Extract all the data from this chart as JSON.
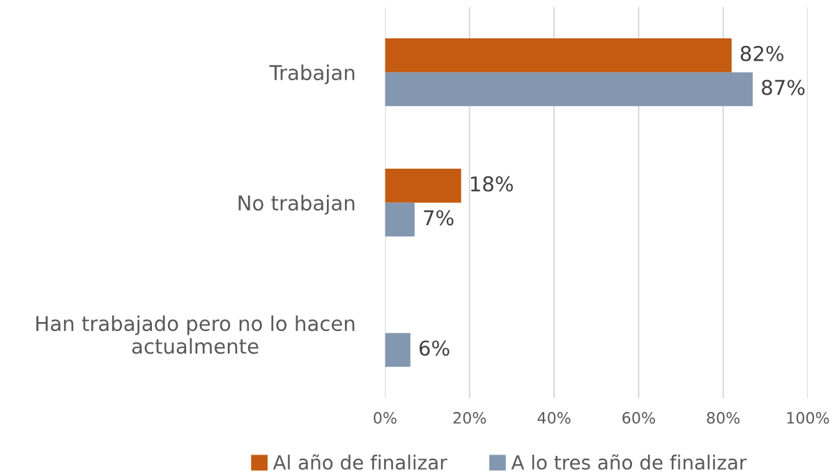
{
  "chart_data": {
    "type": "bar",
    "orientation": "horizontal",
    "categories": [
      "Trabajan",
      "No trabajan",
      "Han trabajado pero no lo hacen\nactualmente"
    ],
    "series": [
      {
        "name": "Al año de finalizar",
        "color": "#c55a11",
        "values": [
          82,
          18,
          null
        ],
        "value_labels": [
          "82%",
          "18%",
          null
        ]
      },
      {
        "name": "A lo tres año de finalizar",
        "color": "#8497b0",
        "values": [
          87,
          7,
          6
        ],
        "value_labels": [
          "87%",
          "7%",
          "6%"
        ]
      }
    ],
    "xlim": [
      0,
      100
    ],
    "xticks": [
      {
        "value": 0,
        "label": "0%"
      },
      {
        "value": 20,
        "label": "20%"
      },
      {
        "value": 40,
        "label": "40%"
      },
      {
        "value": 60,
        "label": "60%"
      },
      {
        "value": 80,
        "label": "80%"
      },
      {
        "value": 100,
        "label": "100%"
      }
    ],
    "grid": "x",
    "legend": "bottom"
  }
}
